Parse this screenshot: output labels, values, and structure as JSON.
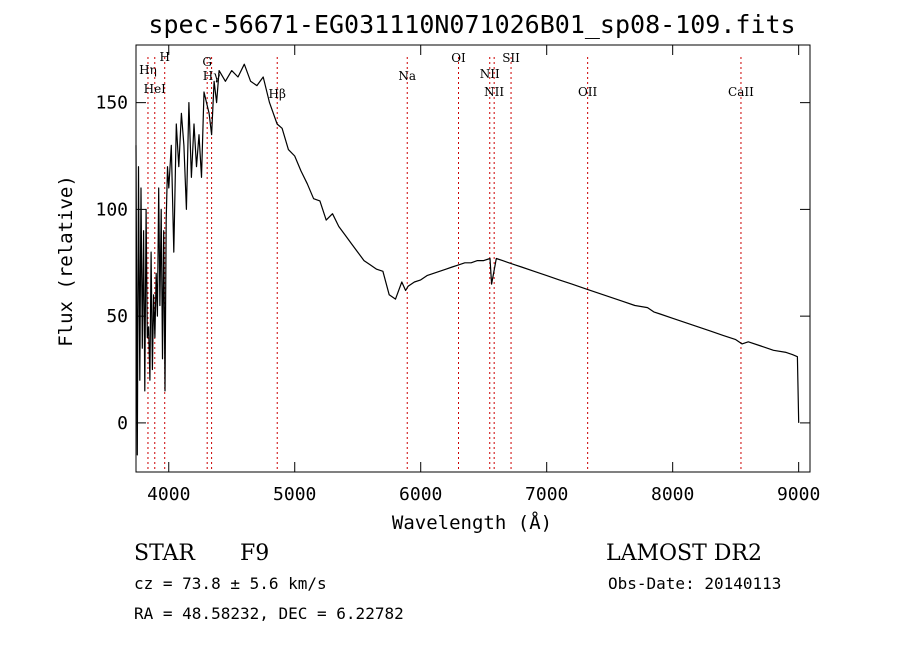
{
  "chart_data": {
    "type": "line",
    "title": "spec-56671-EG031110N071026B01_sp08-109.fits",
    "xlabel": "Wavelength (Å)",
    "ylabel": "Flux (relative)",
    "xlim": [
      3740,
      9090
    ],
    "ylim": [
      -23,
      177
    ],
    "xticks": [
      4000,
      5000,
      6000,
      7000,
      8000,
      9000
    ],
    "yticks": [
      0,
      50,
      100,
      150
    ],
    "grid": false,
    "series": [
      {
        "x": [
          3740,
          3750,
          3760,
          3770,
          3780,
          3790,
          3800,
          3810,
          3820,
          3830,
          3840,
          3850,
          3860,
          3870,
          3880,
          3890,
          3900,
          3910,
          3920,
          3930,
          3940,
          3950,
          3960,
          3970,
          3980,
          3990,
          4000,
          4020,
          4040,
          4060,
          4080,
          4100,
          4120,
          4140,
          4160,
          4180,
          4200,
          4220,
          4240,
          4260,
          4280,
          4300,
          4320,
          4340,
          4360,
          4380,
          4400,
          4450,
          4500,
          4550,
          4600,
          4650,
          4700,
          4750,
          4800,
          4860,
          4900,
          4950,
          5000,
          5050,
          5100,
          5150,
          5200,
          5250,
          5300,
          5350,
          5400,
          5450,
          5500,
          5550,
          5600,
          5650,
          5700,
          5750,
          5800,
          5850,
          5880,
          5900,
          5950,
          6000,
          6050,
          6100,
          6150,
          6200,
          6250,
          6300,
          6350,
          6400,
          6450,
          6500,
          6550,
          6563,
          6600,
          6650,
          6700,
          6750,
          6800,
          6900,
          7000,
          7100,
          7200,
          7300,
          7400,
          7500,
          7600,
          7700,
          7800,
          7850,
          7900,
          8000,
          8100,
          8200,
          8300,
          8400,
          8500,
          8550,
          8600,
          8700,
          8800,
          8900,
          8950,
          8990,
          9000
        ],
        "values": [
          130,
          -15,
          120,
          20,
          110,
          35,
          90,
          15,
          100,
          40,
          45,
          20,
          80,
          25,
          60,
          40,
          70,
          50,
          110,
          55,
          100,
          30,
          90,
          15,
          95,
          120,
          110,
          130,
          80,
          140,
          120,
          145,
          130,
          100,
          150,
          115,
          140,
          120,
          135,
          115,
          155,
          150,
          145,
          135,
          160,
          150,
          165,
          160,
          165,
          162,
          168,
          160,
          158,
          162,
          150,
          140,
          138,
          128,
          125,
          118,
          112,
          105,
          104,
          95,
          98,
          92,
          88,
          84,
          80,
          76,
          74,
          72,
          71,
          60,
          58,
          66,
          62,
          64,
          66,
          67,
          69,
          70,
          71,
          72,
          73,
          74,
          75,
          75,
          76,
          76,
          77,
          65,
          77,
          76,
          75,
          74,
          73,
          71,
          69,
          67,
          65,
          63,
          61,
          59,
          57,
          55,
          54,
          52,
          51,
          49,
          47,
          45,
          43,
          41,
          39,
          37,
          38,
          36,
          34,
          33,
          32,
          31,
          0
        ],
        "color": "#000000"
      }
    ],
    "line_markers": [
      {
        "label": "Hη",
        "x": 3835
      },
      {
        "label": "HeI",
        "x": 3889
      },
      {
        "label": "H",
        "x": 3968
      },
      {
        "label": "Hγ",
        "x": 4340
      },
      {
        "label": "G",
        "x": 4305
      },
      {
        "label": "Hβ",
        "x": 4861
      },
      {
        "label": "Na",
        "x": 5893
      },
      {
        "label": "OI",
        "x": 6300
      },
      {
        "label": "NII",
        "x": 6548
      },
      {
        "label": "NII",
        "x": 6583
      },
      {
        "label": "OII",
        "x": 7325
      },
      {
        "label": "SII",
        "x": 6717
      },
      {
        "label": "CaII",
        "x": 8542
      }
    ],
    "marker_color": "#cc0000"
  },
  "info": {
    "class_label": "STAR",
    "subclass_label": "F9",
    "survey": "LAMOST DR2",
    "cz_text": "cz = 73.8 ± 5.6 km/s",
    "obs_date": "Obs-Date: 20140113",
    "radec_text": "RA =  48.58232, DEC =   6.22782"
  }
}
